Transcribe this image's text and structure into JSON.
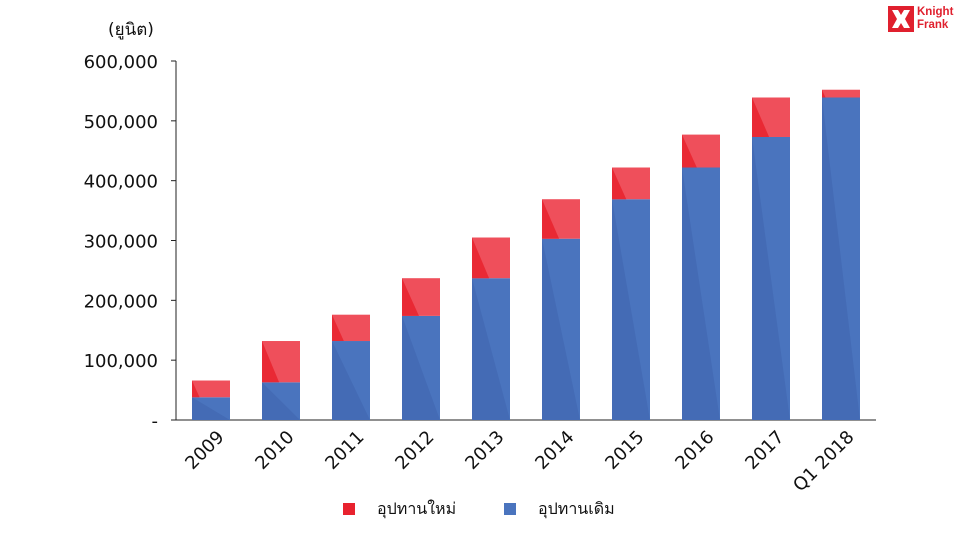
{
  "chart_data": {
    "type": "bar",
    "stacked": true,
    "unit_label": "(ยูนิต)",
    "categories": [
      "2009",
      "2010",
      "2011",
      "2012",
      "2013",
      "2014",
      "2015",
      "2016",
      "2017",
      "Q1 2018"
    ],
    "series": [
      {
        "name": "อุปทานเดิม",
        "color": "#4a74be",
        "values": [
          38000,
          63000,
          132000,
          174000,
          237000,
          303000,
          369000,
          422000,
          473000,
          539000
        ]
      },
      {
        "name": "อุปทานใหม่",
        "color": "#ef4f5b",
        "values": [
          28000,
          69000,
          44000,
          63000,
          68000,
          66000,
          53000,
          55000,
          66000,
          13000
        ]
      }
    ],
    "ylim": [
      0,
      600000
    ],
    "yticks": [
      0,
      100000,
      200000,
      300000,
      400000,
      500000,
      600000
    ],
    "ytick_labels": [
      "-",
      "100,000",
      "200,000",
      "300,000",
      "400,000",
      "500,000",
      "600,000"
    ],
    "xlabel": "",
    "ylabel": "",
    "grid": false,
    "legend_position": "bottom-center"
  },
  "legend": [
    {
      "label": "อุปทานใหม่",
      "color": "#e8222e"
    },
    {
      "label": "อุปทานเดิม",
      "color": "#4a74be"
    }
  ],
  "logo": {
    "line1": "Knight",
    "line2": "Frank",
    "color": "#e0202e"
  }
}
